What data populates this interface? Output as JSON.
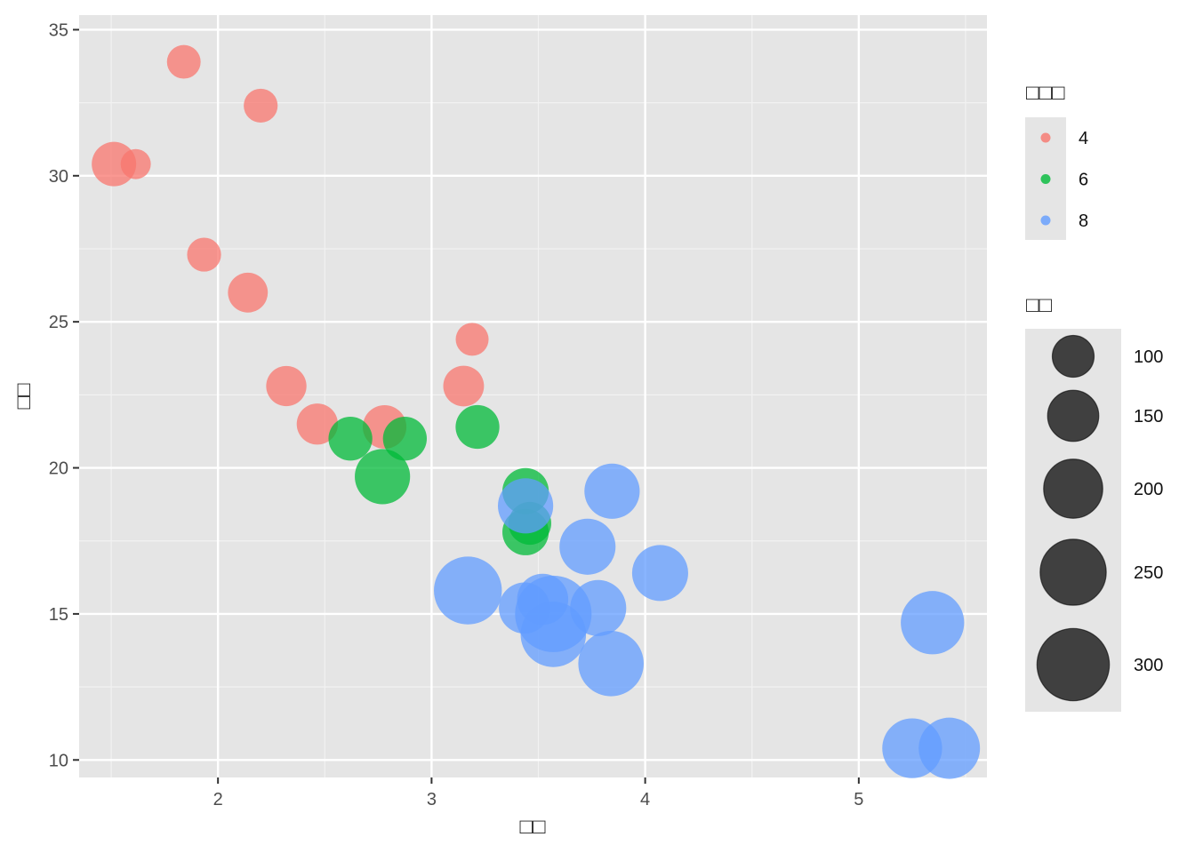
{
  "chart_data": {
    "type": "scatter",
    "title": "",
    "xlabel": "□□",
    "ylabel": "□□",
    "xlim": [
      1.35,
      5.6
    ],
    "ylim": [
      9.4,
      35.5
    ],
    "x_ticks": [
      2,
      3,
      4,
      5
    ],
    "y_ticks": [
      10,
      15,
      20,
      25,
      30,
      35
    ],
    "grid": true,
    "legend_position": "right",
    "color_legend": {
      "title": "□□□",
      "entries": [
        {
          "label": "4",
          "color": "#F8766D"
        },
        {
          "label": "6",
          "color": "#00BA38"
        },
        {
          "label": "8",
          "color": "#619CFF"
        }
      ]
    },
    "size_legend": {
      "title": "□□",
      "entries": [
        "100",
        "150",
        "200",
        "250",
        "300"
      ],
      "values": [
        100,
        150,
        200,
        250,
        300
      ]
    },
    "series": [
      {
        "label": "4",
        "color": "#F8766D",
        "points": [
          {
            "x": 1.84,
            "y": 33.9,
            "size": 65
          },
          {
            "x": 2.2,
            "y": 32.4,
            "size": 66
          },
          {
            "x": 1.513,
            "y": 30.4,
            "size": 113
          },
          {
            "x": 1.615,
            "y": 30.4,
            "size": 52
          },
          {
            "x": 1.935,
            "y": 27.3,
            "size": 66
          },
          {
            "x": 2.14,
            "y": 26.0,
            "size": 91
          },
          {
            "x": 3.19,
            "y": 24.4,
            "size": 62
          },
          {
            "x": 2.32,
            "y": 22.8,
            "size": 93
          },
          {
            "x": 3.15,
            "y": 22.8,
            "size": 95
          },
          {
            "x": 2.465,
            "y": 21.5,
            "size": 97
          },
          {
            "x": 2.78,
            "y": 21.4,
            "size": 109
          }
        ]
      },
      {
        "label": "6",
        "color": "#00BA38",
        "points": [
          {
            "x": 2.62,
            "y": 21.0,
            "size": 110
          },
          {
            "x": 2.875,
            "y": 21.0,
            "size": 110
          },
          {
            "x": 3.215,
            "y": 21.4,
            "size": 110
          },
          {
            "x": 2.77,
            "y": 19.7,
            "size": 175
          },
          {
            "x": 3.44,
            "y": 19.2,
            "size": 123
          },
          {
            "x": 3.46,
            "y": 18.1,
            "size": 105
          },
          {
            "x": 3.44,
            "y": 17.8,
            "size": 123
          }
        ]
      },
      {
        "label": "8",
        "color": "#619CFF",
        "points": [
          {
            "x": 3.44,
            "y": 18.7,
            "size": 175
          },
          {
            "x": 3.845,
            "y": 19.2,
            "size": 175
          },
          {
            "x": 3.73,
            "y": 17.3,
            "size": 180
          },
          {
            "x": 4.07,
            "y": 16.4,
            "size": 180
          },
          {
            "x": 3.17,
            "y": 15.8,
            "size": 264
          },
          {
            "x": 3.435,
            "y": 15.2,
            "size": 150
          },
          {
            "x": 3.52,
            "y": 15.5,
            "size": 150
          },
          {
            "x": 3.78,
            "y": 15.2,
            "size": 180
          },
          {
            "x": 3.57,
            "y": 15.0,
            "size": 335
          },
          {
            "x": 3.57,
            "y": 14.3,
            "size": 245
          },
          {
            "x": 3.84,
            "y": 13.3,
            "size": 245
          },
          {
            "x": 5.345,
            "y": 14.7,
            "size": 230
          },
          {
            "x": 5.25,
            "y": 10.4,
            "size": 205
          },
          {
            "x": 5.424,
            "y": 10.4,
            "size": 215
          }
        ]
      }
    ]
  }
}
